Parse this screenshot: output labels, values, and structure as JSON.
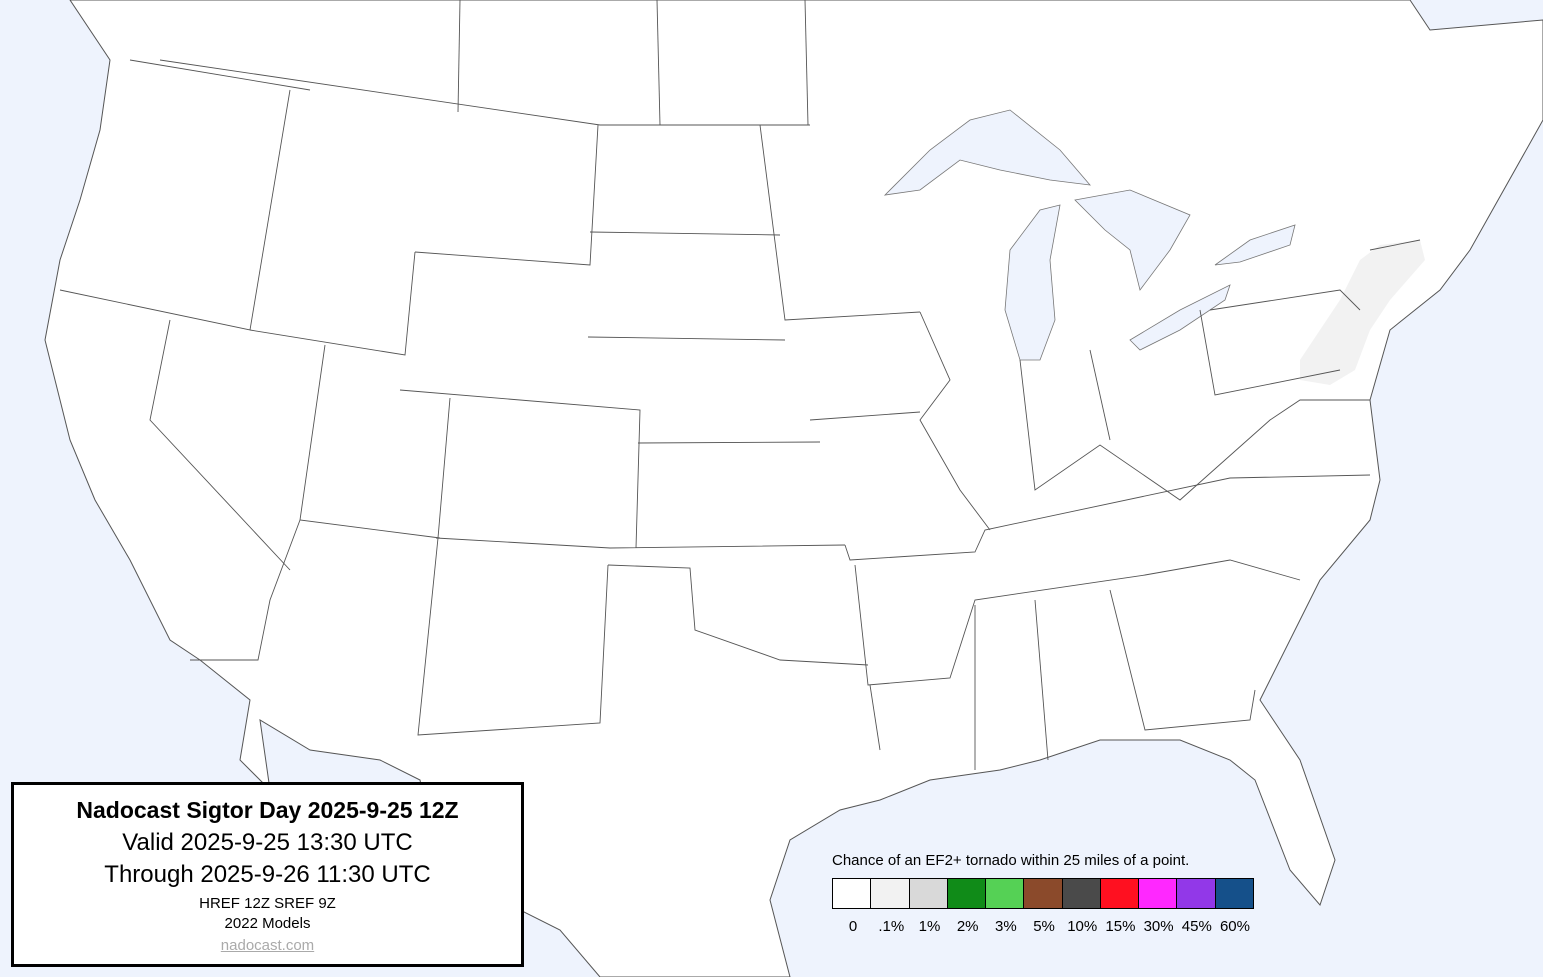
{
  "info_box": {
    "title": "Nadocast Sigtor Day 2025-9-25 12Z",
    "valid": "Valid 2025-9-25 13:30 UTC",
    "through": "Through 2025-9-26 11:30 UTC",
    "models_run": "HREF 12Z SREF 9Z",
    "models_version": "2022 Models",
    "link": "nadocast.com"
  },
  "legend": {
    "caption": "Chance of an EF2+ tornado within 25 miles of a point.",
    "bins": [
      {
        "label": "0",
        "color": "#ffffff"
      },
      {
        "label": ".1%",
        "color": "#f2f2f2"
      },
      {
        "label": "1%",
        "color": "#d9d9d9"
      },
      {
        "label": "2%",
        "color": "#108b18"
      },
      {
        "label": "3%",
        "color": "#55d155"
      },
      {
        "label": "5%",
        "color": "#8b4a2b"
      },
      {
        "label": "10%",
        "color": "#4a4a4a"
      },
      {
        "label": "15%",
        "color": "#ff1020"
      },
      {
        "label": "30%",
        "color": "#ff28ff"
      },
      {
        "label": "45%",
        "color": "#9238e8"
      },
      {
        "label": "60%",
        "color": "#15508a"
      }
    ]
  },
  "map": {
    "water_color": "#eef3fd",
    "land_color": "#ffffff",
    "forecast_areas": [
      {
        "level": ".1%",
        "region": "Mid-Atlantic / Northeast"
      }
    ]
  }
}
